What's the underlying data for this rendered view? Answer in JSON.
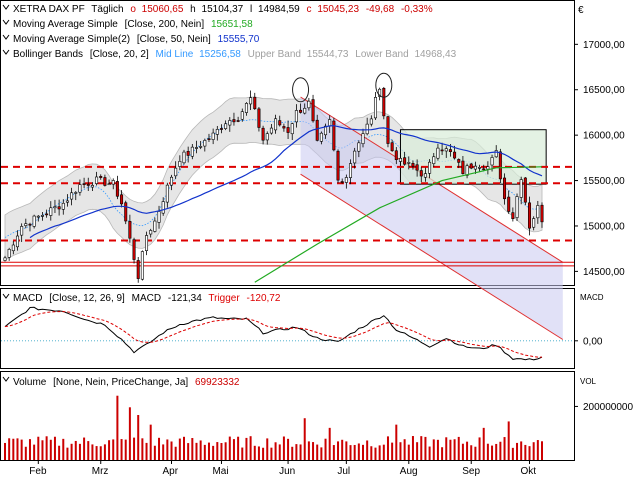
{
  "colors": {
    "up": "#ffffff",
    "down": "#cc0000",
    "ma200": "#22aa22",
    "ma50": "#1133cc",
    "bollinger_mid": "#3399ff",
    "bollinger_fill": "#e6e6e6",
    "channel_fill": "#c8c8f0",
    "channel_line": "#e03030",
    "hline": "#dd0000",
    "macd": "#000000",
    "signal": "#dd0000",
    "volume": "#cc0000",
    "box_fill": "#d8ecd8"
  },
  "header": {
    "name": "XETRA DAX PF",
    "period": "Täglich",
    "open_prefix": "o",
    "open": "15060,65",
    "high_prefix": "h",
    "high": "15104,37",
    "low_prefix": "l",
    "low": "14984,59",
    "close_prefix": "c",
    "close": "15045,23",
    "change": "-49,68",
    "change_pct": "-0,33%"
  },
  "legend": [
    {
      "label": "Moving Average Simple",
      "params": "[Close, 200, Nein]",
      "value": "15651,58",
      "color": "#22aa22"
    },
    {
      "label": "Moving Average Simple(2)",
      "params": "[Close, 50, Nein]",
      "value": "15555,70",
      "color": "#1133cc"
    },
    {
      "label": "Bollinger Bands",
      "params": "[Close, 20, 2]",
      "mid_label": "Mid Line",
      "mid_value": "15256,58",
      "upper_label": "Upper Band",
      "upper_value": "15544,73",
      "lower_label": "Lower Band",
      "lower_value": "14968,43"
    }
  ],
  "macd_legend": {
    "label": "MACD",
    "params": "[Close, 12, 26, 9]",
    "name": "MACD",
    "value": "-121,34",
    "trigger_label": "Trigger",
    "trigger_value": "-120,72"
  },
  "volume_legend": {
    "label": "Volume",
    "params": "[None, Nein, PriceChange, Ja]",
    "value": "69923332"
  },
  "panel_titles": {
    "price_unit": "€",
    "macd": "MACD",
    "volume": "VOL"
  },
  "chart_data": {
    "type": "candlestick",
    "x_ticks": [
      "Feb",
      "Mrz",
      "Apr",
      "Mai",
      "Jun",
      "Jul",
      "Aug",
      "Sep",
      "Okt"
    ],
    "price": {
      "ylim": [
        14350,
        17400
      ],
      "y_ticks": [
        "17000,00",
        "16500,00",
        "16000,00",
        "15500,00",
        "15000,00",
        "14500,00"
      ],
      "y_tick_values": [
        17000,
        16500,
        16000,
        15500,
        15000,
        14500
      ],
      "horizontal_levels": [
        15650,
        15470,
        14840,
        14600,
        14560
      ],
      "close_anchors": [
        [
          0,
          14650
        ],
        [
          4,
          15000
        ],
        [
          10,
          15150
        ],
        [
          14,
          15250
        ],
        [
          18,
          15450
        ],
        [
          22,
          15500
        ],
        [
          26,
          15460
        ],
        [
          28,
          15250
        ],
        [
          30,
          14850
        ],
        [
          32,
          14450
        ],
        [
          34,
          14900
        ],
        [
          36,
          15050
        ],
        [
          38,
          15300
        ],
        [
          40,
          15550
        ],
        [
          42,
          15750
        ],
        [
          44,
          15800
        ],
        [
          47,
          15900
        ],
        [
          50,
          16000
        ],
        [
          53,
          16150
        ],
        [
          56,
          16200
        ],
        [
          59,
          16400
        ],
        [
          62,
          15950
        ],
        [
          65,
          16150
        ],
        [
          68,
          16050
        ],
        [
          70,
          16250
        ],
        [
          73,
          16350
        ],
        [
          75,
          15900
        ],
        [
          78,
          16150
        ],
        [
          80,
          15500
        ],
        [
          82,
          15550
        ],
        [
          84,
          15850
        ],
        [
          86,
          16000
        ],
        [
          88,
          16200
        ],
        [
          90,
          16550
        ],
        [
          92,
          15900
        ],
        [
          95,
          15700
        ],
        [
          98,
          15650
        ],
        [
          101,
          15550
        ],
        [
          104,
          15900
        ],
        [
          107,
          15800
        ],
        [
          110,
          15600
        ],
        [
          113,
          15700
        ],
        [
          116,
          15650
        ],
        [
          118,
          15800
        ],
        [
          120,
          15300
        ],
        [
          122,
          15100
        ],
        [
          124,
          15550
        ],
        [
          126,
          15000
        ],
        [
          128,
          15200
        ],
        [
          129,
          15045
        ]
      ],
      "bollinger_envelope_halfwidth": 250,
      "channel": {
        "upper": [
          [
            71,
            16420
          ],
          [
            134,
            14600
          ]
        ],
        "lower": [
          [
            71,
            15570
          ],
          [
            134,
            13750
          ]
        ]
      },
      "box": {
        "x": [
          95,
          130
        ],
        "y": [
          15460,
          16060
        ]
      },
      "ellipses": [
        {
          "x": 71,
          "y": 16500
        },
        {
          "x": 91,
          "y": 16550
        }
      ]
    },
    "macd": {
      "ylim": [
        -200,
        300
      ],
      "y_ticks": [
        "0,00"
      ],
      "y_tick_values": [
        0
      ],
      "anchors": [
        [
          0,
          100
        ],
        [
          6,
          240
        ],
        [
          14,
          220
        ],
        [
          20,
          150
        ],
        [
          24,
          120
        ],
        [
          28,
          10
        ],
        [
          31,
          -80
        ],
        [
          34,
          -30
        ],
        [
          38,
          60
        ],
        [
          42,
          120
        ],
        [
          46,
          150
        ],
        [
          50,
          170
        ],
        [
          54,
          160
        ],
        [
          58,
          160
        ],
        [
          62,
          60
        ],
        [
          66,
          80
        ],
        [
          70,
          100
        ],
        [
          75,
          20
        ],
        [
          80,
          -10
        ],
        [
          84,
          70
        ],
        [
          88,
          140
        ],
        [
          91,
          190
        ],
        [
          94,
          80
        ],
        [
          98,
          20
        ],
        [
          102,
          -40
        ],
        [
          106,
          20
        ],
        [
          110,
          -40
        ],
        [
          114,
          -60
        ],
        [
          118,
          -30
        ],
        [
          122,
          -130
        ],
        [
          126,
          -140
        ],
        [
          129,
          -121
        ]
      ]
    },
    "volume": {
      "ylim": [
        0,
        280000000
      ],
      "y_ticks": [
        "200000000"
      ],
      "y_tick_values": [
        200000000
      ],
      "last": 69923332
    }
  }
}
